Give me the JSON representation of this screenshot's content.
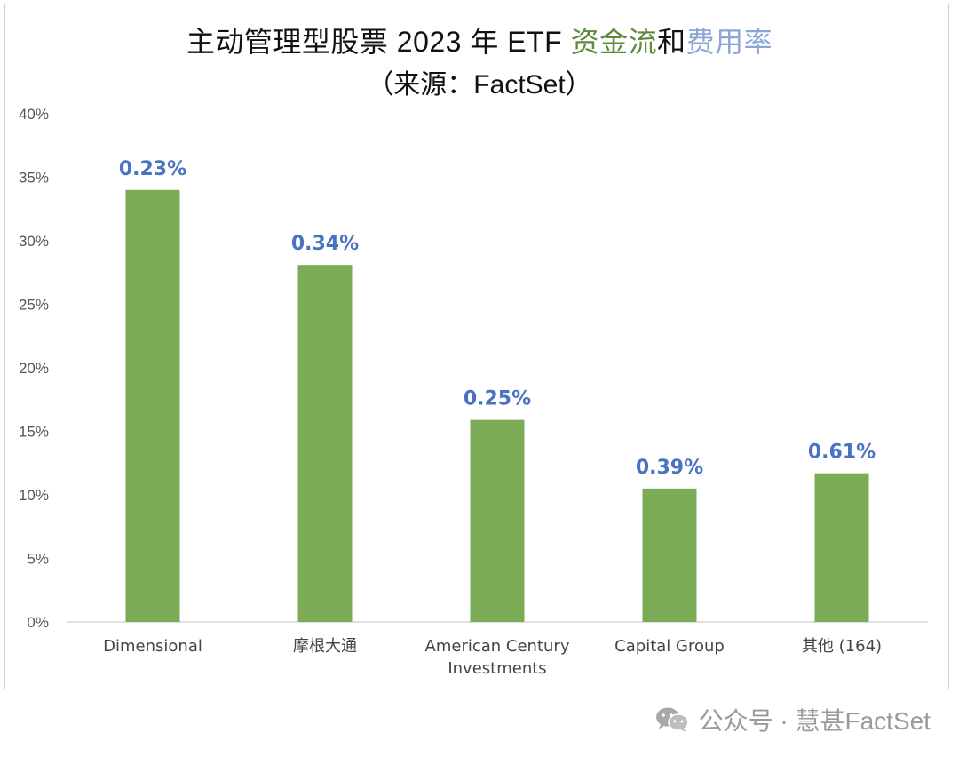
{
  "title": {
    "prefix": "主动管理型股票 2023 年 ETF ",
    "flow_word": "资金流",
    "and_word": "和",
    "fee_word": "费用率",
    "subtitle": "（来源：FactSet）"
  },
  "colors": {
    "bar": "#7bab55",
    "label": "#4a72c2",
    "flow_word": "#5f8a3c",
    "fee_word": "#8aa6d6",
    "axis": "#d9d9d9",
    "tick": "#555555"
  },
  "chart_data": {
    "type": "bar",
    "title": "主动管理型股票 2023 年 ETF 资金流和费用率（来源：FactSet）",
    "categories": [
      [
        "Dimensional"
      ],
      [
        "摩根大通"
      ],
      [
        "American Century",
        "Investments"
      ],
      [
        "Capital Group"
      ],
      [
        "其他 (164)"
      ]
    ],
    "values": [
      34,
      28.1,
      15.9,
      10.5,
      11.7
    ],
    "data_labels": [
      "0.23%",
      "0.34%",
      "0.25%",
      "0.39%",
      "0.61%"
    ],
    "ylim": [
      0,
      40
    ],
    "yticks": [
      "0%",
      "5%",
      "10%",
      "15%",
      "20%",
      "25%",
      "30%",
      "35%",
      "40%"
    ],
    "grid": false,
    "legend": "none"
  },
  "watermark": {
    "text": "公众号 · 慧甚FactSet",
    "icon": "wechat-icon"
  }
}
